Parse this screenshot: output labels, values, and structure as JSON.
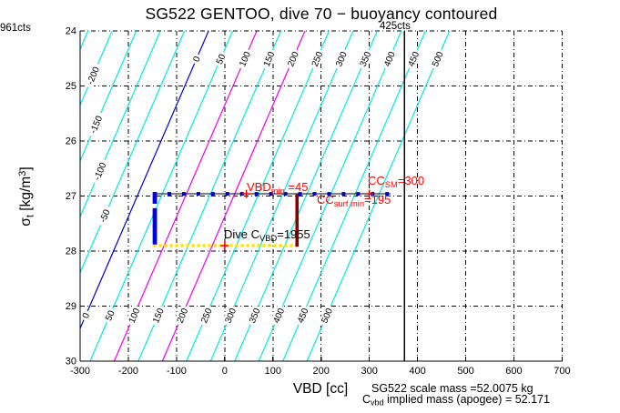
{
  "title": "SG522 GENTOO, dive 70 − buoyancy contoured",
  "annotations": {
    "left_counts": "961cts",
    "ref_line_counts": "425cts",
    "vbd_min": {
      "main": "VBD",
      "sub": "min",
      "rest": " =45"
    },
    "cc_sm": {
      "main": "CC",
      "sub": "SM",
      "rest": "=300"
    },
    "cc_surf_min": {
      "main": "CC",
      "sub": "surf min",
      "rest": "=195"
    },
    "dive_c": {
      "main": "Dive C",
      "sub": "VBD",
      "rest": "=1955"
    },
    "scale_mass": "SG522 scale mass =52.0075 kg",
    "implied_mass": {
      "main": "C",
      "sub": "vbd",
      "rest": " implied mass (apogee) = 52.171"
    }
  },
  "axes": {
    "x_label": "VBD [cc]",
    "y_label": {
      "sigma": "σ",
      "sub": "t",
      "unit": " [kg/m",
      "sup": "3",
      "close": "]"
    },
    "x_tick_labels": [
      "-300",
      "-200",
      "-100",
      "0",
      "100",
      "200",
      "300",
      "400",
      "500",
      "600",
      "700"
    ],
    "y_tick_labels": [
      "24",
      "25",
      "26",
      "27",
      "28",
      "29",
      "30"
    ]
  },
  "colors": {
    "contour_default": "#00e8e8",
    "contour_zero": "#0000cc",
    "contour_highlight": "#ee00ee",
    "grid": "#000000",
    "axis": "#000000",
    "dive_line": "#000000",
    "dive_marker": "#0000cc",
    "vbd_min_bar": "#0000dd",
    "dive_cvbd_bar": "#8e0000",
    "surface_dots": "#ffe800",
    "plus_marker": "#ff0000",
    "ref_line": "#000000"
  },
  "chart_data": {
    "type": "contour",
    "title": "SG522 GENTOO, dive 70 − buoyancy contoured",
    "xlabel": "VBD [cc]",
    "ylabel": "sigma_t [kg/m^3]",
    "xlim": [
      -300,
      700
    ],
    "ylim": [
      24,
      30
    ],
    "y_axis_inverted": true,
    "grid": true,
    "x_ticks": [
      -300,
      -200,
      -100,
      0,
      100,
      200,
      300,
      400,
      500,
      600,
      700
    ],
    "y_ticks": [
      24,
      25,
      26,
      27,
      28,
      29,
      30
    ],
    "contour_levels": [
      -250,
      -200,
      -150,
      -100,
      -50,
      0,
      50,
      100,
      150,
      200,
      250,
      300,
      350,
      400,
      450,
      500
    ],
    "contour_geometry": {
      "vbd_at_top_for_level0": -33.5,
      "dvbd_dsigma": -49.3
    },
    "contour_label_rows": [
      {
        "y_sigma": 24.51,
        "levels": [
          0,
          50,
          100,
          150,
          200,
          250,
          300,
          350,
          400,
          450,
          500
        ]
      },
      {
        "y_sigma": 29.17,
        "levels": [
          0,
          50,
          100,
          150,
          200,
          250,
          300,
          350,
          400,
          450,
          500
        ]
      },
      {
        "y_sigma": 24.81,
        "levels": [
          -200
        ]
      },
      {
        "y_sigma": 25.7,
        "levels": [
          -150
        ]
      },
      {
        "y_sigma": 26.55,
        "levels": [
          -100
        ]
      },
      {
        "y_sigma": 27.36,
        "levels": [
          -50
        ]
      }
    ],
    "dive_track": {
      "sigma_t": 26.96,
      "vbd_from": -145,
      "vbd_to": 344,
      "marker_count": 17,
      "marker_vbd_from": -145,
      "marker_vbd_to": 337
    },
    "vbd_min_bar": {
      "vbd": -145,
      "sigma_segments": [
        [
          26.93,
          27.14
        ],
        [
          27.22,
          27.88
        ]
      ]
    },
    "dive_cvbd_bar": {
      "vbd": 150,
      "sigma_from": 26.96,
      "sigma_to": 27.92
    },
    "surface_track": {
      "sigma_t": 27.9,
      "vbd_from": -145,
      "vbd_to": 161
    },
    "plus_markers": [
      {
        "vbd": 45,
        "sigma_t": 26.96
      },
      {
        "vbd": 300,
        "sigma_t": 26.96
      },
      {
        "vbd": 0,
        "sigma_t": 27.9
      }
    ],
    "vertical_ref_line": {
      "vbd": 373,
      "label": "425cts"
    }
  }
}
